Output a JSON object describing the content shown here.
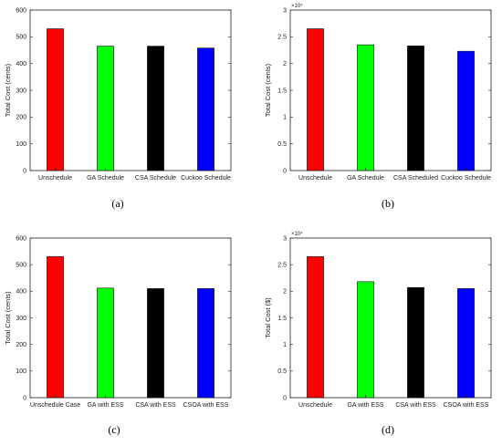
{
  "chart_data": [
    {
      "type": "bar",
      "panel": "(a)",
      "categories": [
        "Unschedule",
        "GA Schedule",
        "CSA Schedule",
        "Cuckoo Schedule"
      ],
      "values": [
        530,
        465,
        465,
        458
      ],
      "colors": [
        "#ff0000",
        "#00ff00",
        "#000000",
        "#0000ff"
      ],
      "ylabel": "Total Cost (cents)",
      "ylim": [
        0,
        600
      ],
      "yticks": [
        0,
        100,
        200,
        300,
        400,
        500,
        600
      ],
      "ytick_labels": [
        "0",
        "100",
        "200",
        "300",
        "400",
        "500",
        "600"
      ],
      "exponent_label": "",
      "grid": false
    },
    {
      "type": "bar",
      "panel": "(b)",
      "categories": [
        "Unschedule",
        "GA Schedule",
        "CSA Scheduled",
        "Cuckoo Schedule"
      ],
      "values": [
        2.65,
        2.35,
        2.33,
        2.23
      ],
      "colors": [
        "#ff0000",
        "#00ff00",
        "#000000",
        "#0000ff"
      ],
      "ylabel": "Total Cost (cents)",
      "ylim": [
        0,
        3
      ],
      "yticks": [
        0,
        0.5,
        1,
        1.5,
        2,
        2.5,
        3
      ],
      "ytick_labels": [
        "0",
        "0.5",
        "1",
        "1.5",
        "2",
        "2.5",
        "3"
      ],
      "exponent_label": "×10⁴",
      "grid": false
    },
    {
      "type": "bar",
      "panel": "(c)",
      "categories": [
        "Unschedule Case",
        "GA with ESS",
        "CSA with ESS",
        "CSOA with ESS"
      ],
      "values": [
        530,
        412,
        410,
        410
      ],
      "colors": [
        "#ff0000",
        "#00ff00",
        "#000000",
        "#0000ff"
      ],
      "ylabel": "Total Cost (cents)",
      "ylim": [
        0,
        600
      ],
      "yticks": [
        0,
        100,
        200,
        300,
        400,
        500,
        600
      ],
      "ytick_labels": [
        "0",
        "100",
        "200",
        "300",
        "400",
        "500",
        "600"
      ],
      "exponent_label": "",
      "grid": false
    },
    {
      "type": "bar",
      "panel": "(d)",
      "categories": [
        "Unschedule",
        "GA with ESS",
        "CSA with ESS",
        "CSOA with ESS"
      ],
      "values": [
        2.65,
        2.18,
        2.07,
        2.05
      ],
      "colors": [
        "#ff0000",
        "#00ff00",
        "#000000",
        "#0000ff"
      ],
      "ylabel": "Total Cost ($)",
      "ylim": [
        0,
        3
      ],
      "yticks": [
        0,
        0.5,
        1,
        1.5,
        2,
        2.5,
        3
      ],
      "ytick_labels": [
        "0",
        "0.5",
        "1",
        "1.5",
        "2",
        "2.5",
        "3"
      ],
      "exponent_label": "×10⁴",
      "grid": false
    }
  ]
}
